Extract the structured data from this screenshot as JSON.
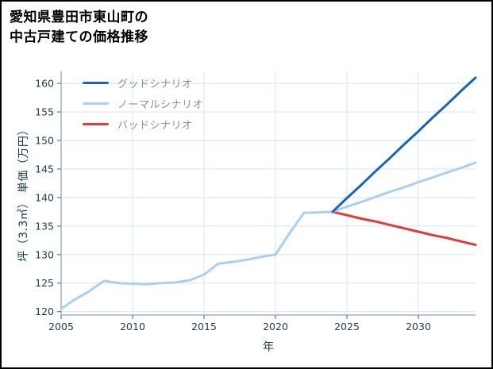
{
  "chart_data": {
    "type": "line",
    "title": "愛知県豊田市東山町の中古戸建ての価格推移",
    "title_lines": [
      "愛知県豊田市東山町の",
      "中古戸建ての価格推移"
    ],
    "xlabel": "年",
    "ylabel": "坪（3.3㎡） 単価（万円）",
    "xlim": [
      2005,
      2034
    ],
    "ylim": [
      119.4,
      162.1
    ],
    "xticks": [
      2005,
      2010,
      2015,
      2020,
      2025,
      2030
    ],
    "yticks": [
      120,
      125,
      130,
      135,
      140,
      145,
      150,
      155,
      160
    ],
    "grid": true,
    "legend_position": "upper-left",
    "series": [
      {
        "name": "グッドシナリオ",
        "color": "#1565c0",
        "x": [
          2024,
          2025,
          2026,
          2027,
          2028,
          2029,
          2030,
          2031,
          2032,
          2033,
          2034
        ],
        "y": [
          137.5,
          139.9,
          142.2,
          144.6,
          146.9,
          149.3,
          151.6,
          154.0,
          156.3,
          158.7,
          161.0
        ]
      },
      {
        "name": "ノーマルシナリオ",
        "color": "#a9cff2",
        "x": [
          2005,
          2006,
          2007,
          2008,
          2009,
          2010,
          2011,
          2012,
          2013,
          2014,
          2015,
          2016,
          2017,
          2018,
          2019,
          2020,
          2021,
          2022,
          2023,
          2024,
          2025,
          2026,
          2027,
          2028,
          2029,
          2030,
          2031,
          2032,
          2033,
          2034
        ],
        "y": [
          120.5,
          122.2,
          123.6,
          125.4,
          125.0,
          124.9,
          124.8,
          125.0,
          125.1,
          125.5,
          126.5,
          128.4,
          128.7,
          129.1,
          129.6,
          130.0,
          133.8,
          137.3,
          137.4,
          137.5,
          138.4,
          139.2,
          140.1,
          141.0,
          141.8,
          142.7,
          143.5,
          144.4,
          145.2,
          146.1
        ]
      },
      {
        "name": "バッドシナリオ",
        "color": "#e53935",
        "x": [
          2024,
          2025,
          2026,
          2027,
          2028,
          2029,
          2030,
          2031,
          2032,
          2033,
          2034
        ],
        "y": [
          137.5,
          136.9,
          136.3,
          135.8,
          135.2,
          134.6,
          134.0,
          133.4,
          132.9,
          132.3,
          131.7
        ]
      }
    ],
    "style": {
      "grid_color": "#dce8f5",
      "spine_color": "#9db4cc",
      "tick_color": "#5b7994",
      "tick_label_color": "#173a57",
      "axis_label_color": "#173a57",
      "legend_text_color": "#8b9094",
      "background": "#ffffff",
      "frame_color": "#000000"
    }
  }
}
